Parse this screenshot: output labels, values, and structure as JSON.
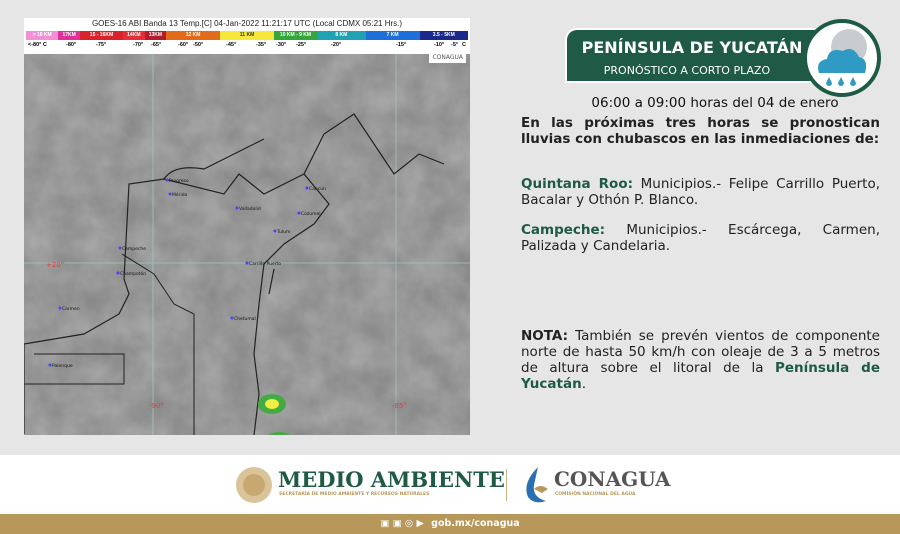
{
  "satellite": {
    "title": "GOES-16 ABI Banda 13 Temp.[C] 04-Jan-2022 11:21:17 UTC (Local CDMX  05:21 Hrs.)",
    "scale": [
      {
        "label": "> 18 KM",
        "color": "#f28fd6"
      },
      {
        "label": "17KM",
        "color": "#e0309a"
      },
      {
        "label": "15 - 16KM",
        "color": "#d8232a"
      },
      {
        "label": "14KM",
        "color": "#e1303a"
      },
      {
        "label": "13KM",
        "color": "#b51c2b"
      },
      {
        "label": "12 KM",
        "color": "#e26a1b"
      },
      {
        "label": "11 KM",
        "color": "#f5e83a"
      },
      {
        "label": "10 KM -  9 KM",
        "color": "#34a63c"
      },
      {
        "label": "8 KM",
        "color": "#1fa3b3"
      },
      {
        "label": "7 KM",
        "color": "#1f6fd8"
      },
      {
        "label": "3.5 - 5KM",
        "color": "#1a2a8a"
      }
    ],
    "ticks": [
      "<-80° C",
      "-80°",
      "-75°",
      "-70°",
      "-65°",
      "-60°",
      "-50°",
      "-45°",
      "-35°",
      "-30°",
      "-25°",
      "-20°",
      "-15°",
      "-10°",
      "-5°",
      "C"
    ],
    "watermark": "CONAGUA",
    "grid_labels": [
      "+20°",
      "-90°",
      "-85°"
    ],
    "cities": [
      "Progreso",
      "Mérida",
      "Valladolid",
      "Cancún",
      "Cozumel",
      "Tulum",
      "Campeche",
      "Champotón",
      "Carrillo Puerto",
      "Carmen",
      "Chetumal",
      "Palenque"
    ]
  },
  "header": {
    "title": "PENÍNSULA DE YUCATÁN",
    "subtitle": "PRONÓSTICO A CORTO PLAZO",
    "weather_icon": "cloud-rain-moon-icon"
  },
  "forecast": {
    "time": "06:00 a 09:00 horas del 04 de enero",
    "intro": "En las próximas tres horas se pronostican lluvias con chubascos en las inmediaciones de:",
    "regions": [
      {
        "state": "Quintana Roo:",
        "text": " Municipios.- Felipe Carrillo Puerto, Bacalar y Othón P. Blanco."
      },
      {
        "state": "Campeche:",
        "text": " Municipios.- Escárcega, Carmen, Palizada y Candelaria."
      }
    ],
    "note_label": "NOTA:",
    "note_text": " También se prevén vientos de componente norte de hasta 50 km/h con oleaje de 3 a 5 metros de altura sobre el litoral de la ",
    "note_place": "Península de Yucatán",
    "note_end": "."
  },
  "footer": {
    "org1": "MEDIO AMBIENTE",
    "org1_sub": "SECRETARÍA DE MEDIO AMBIENTE Y RECURSOS NATURALES",
    "org2": "CONAGUA",
    "org2_sub": "COMISIÓN NACIONAL DEL AGUA",
    "social_icons": [
      "facebook-icon",
      "twitter-icon",
      "instagram-icon",
      "youtube-icon"
    ],
    "url": "gob.mx/conagua",
    "colors": {
      "green": "#1e5a45",
      "gold": "#b8975a"
    }
  }
}
